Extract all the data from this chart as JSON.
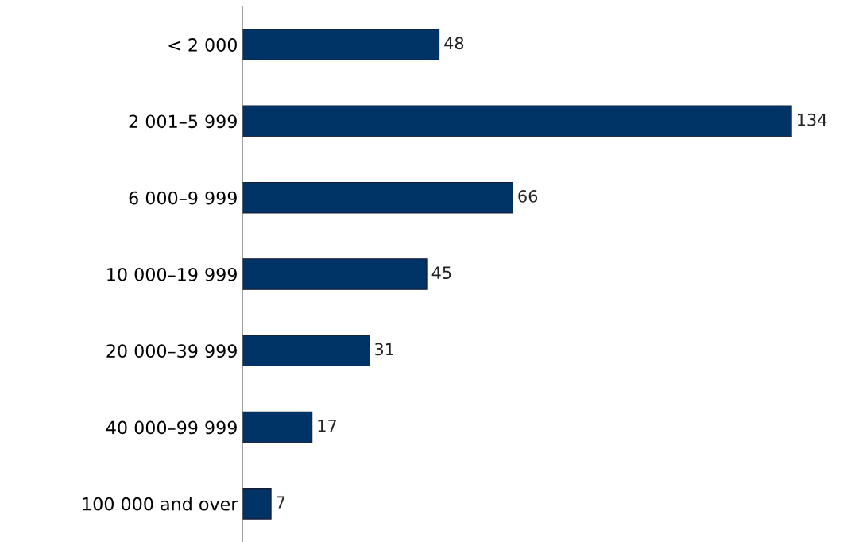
{
  "chart_data": {
    "type": "bar",
    "orientation": "horizontal",
    "categories": [
      "< 2 000",
      "2 001–5 999",
      "6 000–9 999",
      "10 000–19 999",
      "20 000–39 999",
      "40 000–99 999",
      "100 000 and over"
    ],
    "values": [
      48,
      134,
      66,
      45,
      31,
      17,
      7
    ],
    "color": "#003466",
    "data_labels": true
  }
}
